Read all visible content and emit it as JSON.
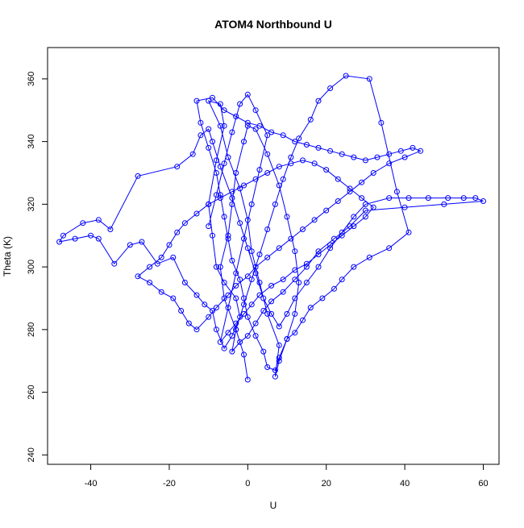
{
  "chart_data": {
    "type": "line",
    "title": "ATOM4 Northbound U",
    "xlabel": "U",
    "ylabel": "Theta (K)",
    "xlim": [
      -51,
      64
    ],
    "ylim": [
      237,
      370
    ],
    "xticks": [
      -40,
      -20,
      0,
      20,
      40,
      60
    ],
    "yticks": [
      240,
      260,
      280,
      300,
      320,
      340,
      360
    ],
    "grid": false,
    "marker": "open-circle",
    "color": "#0000ff",
    "series": [
      {
        "points": [
          [
            0,
            264
          ],
          [
            -1,
            272
          ],
          [
            -3,
            280
          ],
          [
            -6,
            290
          ],
          [
            -7,
            300
          ],
          [
            -5,
            310
          ],
          [
            -4,
            320
          ],
          [
            -3,
            330
          ],
          [
            -1,
            340
          ],
          [
            0,
            345
          ],
          [
            2,
            344
          ],
          [
            5,
            336
          ],
          [
            8,
            326
          ],
          [
            10,
            316
          ],
          [
            12,
            305
          ],
          [
            13,
            295
          ],
          [
            12,
            285
          ],
          [
            10,
            277
          ],
          [
            8,
            270
          ],
          [
            7,
            265
          ],
          [
            8,
            275
          ],
          [
            5,
            285
          ],
          [
            3,
            295
          ],
          [
            1,
            305
          ],
          [
            0,
            315
          ],
          [
            -2,
            325
          ],
          [
            -5,
            335
          ],
          [
            -7,
            345
          ],
          [
            -10,
            353
          ],
          [
            -7,
            352
          ],
          [
            -6,
            345
          ],
          [
            -8,
            334
          ],
          [
            -10,
            320
          ],
          [
            -9,
            310
          ],
          [
            -8,
            300
          ],
          [
            -6,
            295
          ],
          [
            -3,
            290
          ],
          [
            -2,
            284
          ],
          [
            -4,
            278
          ],
          [
            -6,
            274
          ],
          [
            -8,
            280
          ],
          [
            -9,
            286
          ],
          [
            -11,
            288
          ],
          [
            -13,
            291
          ],
          [
            -16,
            295
          ],
          [
            -19,
            303
          ],
          [
            -23,
            301
          ],
          [
            -27,
            308
          ],
          [
            -30,
            307
          ],
          [
            -34,
            301
          ],
          [
            -38,
            309
          ],
          [
            -40,
            310
          ],
          [
            -44,
            309
          ],
          [
            -48,
            308
          ],
          [
            -47,
            310
          ],
          [
            -42,
            314
          ],
          [
            -38,
            315
          ],
          [
            -35,
            312
          ],
          [
            -28,
            329
          ],
          [
            -18,
            332
          ],
          [
            -14,
            336
          ],
          [
            -12,
            342
          ],
          [
            -10,
            344
          ],
          [
            -9,
            340
          ],
          [
            -7,
            332
          ],
          [
            -4,
            322
          ],
          [
            -2,
            314
          ],
          [
            0,
            306
          ],
          [
            2,
            298
          ],
          [
            4,
            290
          ],
          [
            6,
            285
          ],
          [
            8,
            281
          ],
          [
            10,
            285
          ],
          [
            12,
            290
          ],
          [
            15,
            295
          ],
          [
            18,
            300
          ],
          [
            21,
            306
          ],
          [
            24,
            311
          ],
          [
            27,
            316
          ],
          [
            30,
            320
          ],
          [
            36,
            322
          ],
          [
            41,
            322
          ],
          [
            46,
            322
          ],
          [
            51,
            322
          ],
          [
            55,
            322
          ],
          [
            58,
            322
          ],
          [
            60,
            321
          ],
          [
            50,
            320
          ],
          [
            40,
            319
          ],
          [
            30,
            318
          ],
          [
            26,
            313
          ],
          [
            22,
            309
          ],
          [
            18,
            305
          ],
          [
            15,
            300
          ],
          [
            12,
            296
          ],
          [
            9,
            292
          ],
          [
            6,
            289
          ],
          [
            4,
            286
          ],
          [
            2,
            282
          ],
          [
            0,
            278
          ],
          [
            -2,
            276
          ],
          [
            -4,
            273
          ],
          [
            -3,
            280
          ],
          [
            -1,
            288
          ],
          [
            1,
            296
          ],
          [
            3,
            304
          ],
          [
            5,
            312
          ],
          [
            7,
            320
          ],
          [
            9,
            328
          ],
          [
            11,
            335
          ],
          [
            13,
            341
          ],
          [
            16,
            347
          ],
          [
            18,
            353
          ],
          [
            21,
            357
          ],
          [
            25,
            361
          ],
          [
            31,
            360
          ],
          [
            34,
            346
          ],
          [
            38,
            324
          ],
          [
            41,
            311
          ],
          [
            36,
            306
          ],
          [
            31,
            303
          ],
          [
            27,
            300
          ],
          [
            24,
            296
          ],
          [
            22,
            293
          ],
          [
            19,
            290
          ],
          [
            16,
            287
          ],
          [
            14,
            283
          ],
          [
            12,
            279
          ],
          [
            10,
            277
          ],
          [
            8,
            271
          ],
          [
            7,
            267
          ],
          [
            5,
            268
          ],
          [
            4,
            273
          ],
          [
            2,
            278
          ],
          [
            0,
            284
          ],
          [
            -1,
            290
          ],
          [
            -2,
            296
          ],
          [
            -4,
            302
          ],
          [
            -5,
            309
          ],
          [
            -6,
            316
          ],
          [
            -7,
            323
          ],
          [
            -8,
            330
          ],
          [
            -10,
            338
          ],
          [
            -12,
            346
          ],
          [
            -13,
            353
          ],
          [
            -9,
            354
          ],
          [
            -6,
            350
          ],
          [
            -3,
            348
          ],
          [
            0,
            346
          ],
          [
            3,
            345
          ],
          [
            6,
            343
          ],
          [
            9,
            342
          ],
          [
            12,
            340
          ],
          [
            15,
            339
          ],
          [
            18,
            338
          ],
          [
            21,
            337
          ],
          [
            24,
            336
          ],
          [
            27,
            335
          ],
          [
            30,
            334
          ],
          [
            33,
            335
          ],
          [
            36,
            336
          ],
          [
            39,
            337
          ],
          [
            42,
            338
          ],
          [
            44,
            337
          ],
          [
            40,
            335
          ],
          [
            36,
            333
          ],
          [
            32,
            330
          ],
          [
            29,
            327
          ],
          [
            26,
            324
          ],
          [
            23,
            321
          ],
          [
            20,
            318
          ],
          [
            17,
            315
          ],
          [
            14,
            312
          ],
          [
            11,
            309
          ],
          [
            8,
            306
          ],
          [
            5,
            303
          ],
          [
            2,
            300
          ],
          [
            0,
            297
          ],
          [
            -3,
            294
          ],
          [
            -5,
            291
          ],
          [
            -8,
            287
          ],
          [
            -10,
            284
          ],
          [
            -13,
            280
          ],
          [
            -15,
            282
          ],
          [
            -17,
            286
          ],
          [
            -19,
            290
          ],
          [
            -22,
            292
          ],
          [
            -25,
            295
          ],
          [
            -28,
            297
          ],
          [
            -25,
            300
          ],
          [
            -22,
            303
          ],
          [
            -20,
            307
          ],
          [
            -18,
            311
          ],
          [
            -16,
            314
          ],
          [
            -13,
            317
          ],
          [
            -10,
            320
          ],
          [
            -7,
            322
          ],
          [
            -4,
            324
          ],
          [
            -1,
            326
          ],
          [
            2,
            328
          ],
          [
            5,
            330
          ],
          [
            8,
            332
          ],
          [
            11,
            333
          ],
          [
            14,
            334
          ],
          [
            17,
            333
          ],
          [
            20,
            331
          ],
          [
            23,
            328
          ],
          [
            26,
            325
          ],
          [
            29,
            322
          ],
          [
            32,
            319
          ],
          [
            30,
            316
          ],
          [
            27,
            313
          ],
          [
            24,
            310
          ],
          [
            21,
            307
          ],
          [
            18,
            304
          ],
          [
            15,
            301
          ],
          [
            12,
            299
          ],
          [
            9,
            296
          ],
          [
            6,
            294
          ],
          [
            3,
            291
          ],
          [
            1,
            288
          ],
          [
            -1,
            285
          ],
          [
            -3,
            282
          ],
          [
            -5,
            279
          ],
          [
            -7,
            276
          ],
          [
            -5,
            287
          ],
          [
            -3,
            298
          ],
          [
            -1,
            309
          ],
          [
            1,
            320
          ],
          [
            3,
            331
          ],
          [
            5,
            342
          ],
          [
            2,
            350
          ],
          [
            0,
            355
          ],
          [
            -2,
            352
          ],
          [
            -4,
            343
          ],
          [
            -6,
            333
          ],
          [
            -8,
            323
          ],
          [
            -10,
            313
          ]
        ]
      }
    ]
  }
}
